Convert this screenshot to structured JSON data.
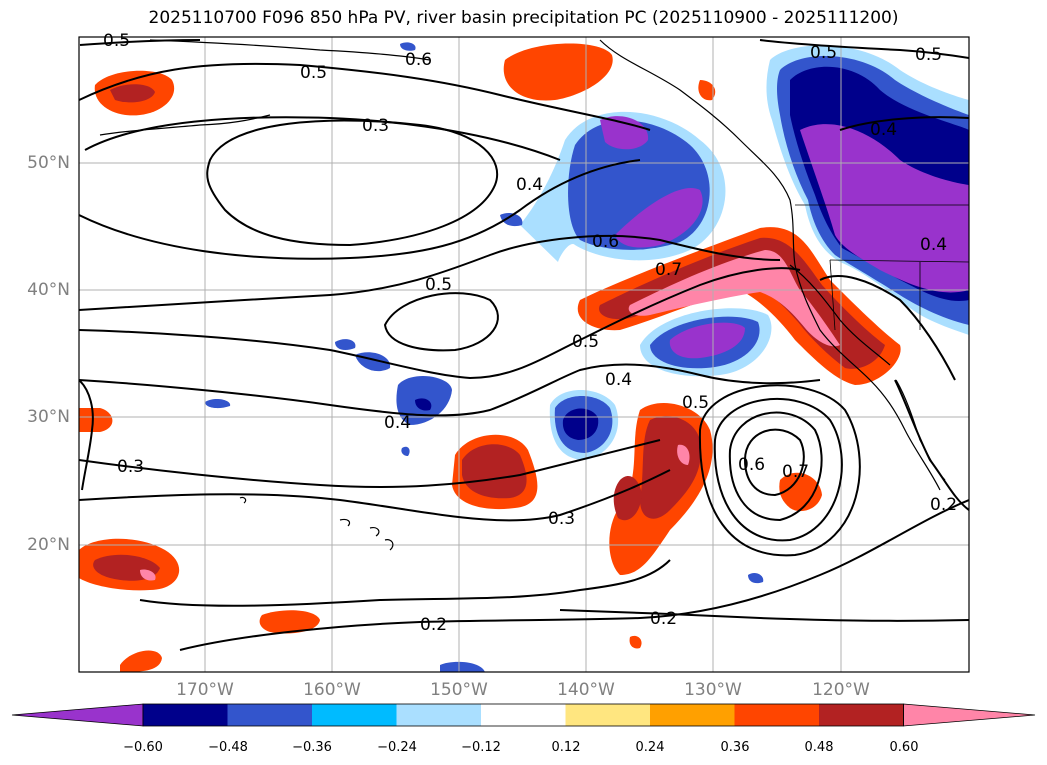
{
  "title": "2025110700 F096 850 hPa PV, river basin precipitation PC (2025110900 - 2025111200)",
  "lat_labels": [
    "50°N",
    "40°N",
    "30°N",
    "20°N"
  ],
  "lon_labels": [
    "170°W",
    "160°W",
    "150°W",
    "140°W",
    "130°W",
    "120°W"
  ],
  "contour_labels": [
    "0.5",
    "0.5",
    "0.5",
    "0.5",
    "0.3",
    "0.4",
    "0.4",
    "0.6",
    "0.7",
    "0.5",
    "0.5",
    "0.4",
    "0.4",
    "0.5",
    "0.6",
    "0.7",
    "0.3",
    "0.3",
    "0.2",
    "0.2",
    "0.2",
    "0.6",
    "0.4"
  ],
  "colorbar": {
    "ticks": [
      "−0.60",
      "−0.48",
      "−0.36",
      "−0.24",
      "−0.12",
      "0.12",
      "0.24",
      "0.36",
      "0.48",
      "0.60"
    ],
    "colors": [
      "#9933cc",
      "#00008b",
      "#3355cc",
      "#00bbff",
      "#aadfff",
      "#ffffff",
      "#ffe680",
      "#ffa000",
      "#ff4500",
      "#b22222",
      "#ff85a8"
    ]
  }
}
